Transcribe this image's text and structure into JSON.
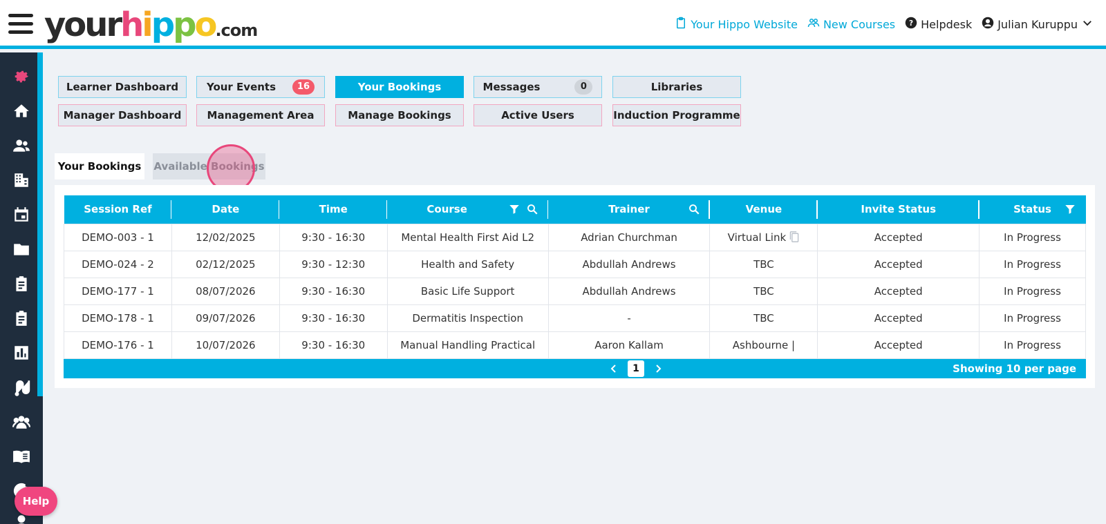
{
  "header": {
    "logo": {
      "your": "your",
      "h": "h",
      "i": "i",
      "p1": "p",
      "p2": "p",
      "o": "o",
      "dotcom": ".com"
    },
    "links": {
      "website": "Your Hippo Website",
      "new_courses": "New Courses",
      "helpdesk": "Helpdesk",
      "user": "Julian Kuruppu"
    }
  },
  "sidebar": {
    "icons": [
      "gear-icon",
      "home-icon",
      "users-icon",
      "building-icon",
      "calendar-icon",
      "folder-icon",
      "clipboard-icon",
      "clipboard-list-icon",
      "bar-chart-icon",
      "route-icon",
      "group-icon",
      "book-icon",
      "progress-icon",
      "user-icon"
    ]
  },
  "nav": {
    "learner_dashboard": "Learner Dashboard",
    "your_events": "Your Events",
    "your_events_badge": "16",
    "your_bookings": "Your Bookings",
    "messages": "Messages",
    "messages_badge": "0",
    "libraries": "Libraries",
    "manager_dashboard": "Manager Dashboard",
    "management_area": "Management Area",
    "manage_bookings": "Manage Bookings",
    "active_users": "Active Users",
    "induction_programme": "Induction Programme"
  },
  "tabs": {
    "your_bookings": "Your Bookings",
    "available_bookings": "Available Bookings"
  },
  "table": {
    "headers": {
      "session_ref": "Session Ref",
      "date": "Date",
      "time": "Time",
      "course": "Course",
      "trainer": "Trainer",
      "venue": "Venue",
      "invite_status": "Invite Status",
      "status": "Status"
    },
    "rows": [
      {
        "session_ref": "DEMO-003 - 1",
        "date": "12/02/2025",
        "time": "9:30 - 16:30",
        "course": "Mental Health First Aid L2",
        "trainer": "Adrian Churchman",
        "venue": "Virtual Link",
        "invite_status": "Accepted",
        "status": "In Progress"
      },
      {
        "session_ref": "DEMO-024 - 2",
        "date": "02/12/2025",
        "time": "9:30 - 12:30",
        "course": "Health and Safety",
        "trainer": "Abdullah Andrews",
        "venue": "TBC",
        "invite_status": "Accepted",
        "status": "In Progress"
      },
      {
        "session_ref": "DEMO-177 - 1",
        "date": "08/07/2026",
        "time": "9:30 - 16:30",
        "course": "Basic Life Support",
        "trainer": "Abdullah Andrews",
        "venue": "TBC",
        "invite_status": "Accepted",
        "status": "In Progress"
      },
      {
        "session_ref": "DEMO-178 - 1",
        "date": "09/07/2026",
        "time": "9:30 - 16:30",
        "course": "Dermatitis Inspection",
        "trainer": "-",
        "venue": "TBC",
        "invite_status": "Accepted",
        "status": "In Progress"
      },
      {
        "session_ref": "DEMO-176 - 1",
        "date": "10/07/2026",
        "time": "9:30 - 16:30",
        "course": "Manual Handling Practical",
        "trainer": "Aaron Kallam",
        "venue": "Ashbourne |",
        "invite_status": "Accepted",
        "status": "In Progress"
      }
    ],
    "pagination": {
      "current_page": "1",
      "showing": "Showing 10 per page"
    }
  },
  "help": {
    "label": "Help"
  },
  "colors": {
    "accent": "#00b0e0",
    "brand_pink": "#e8477b",
    "sidebar": "#1f2d3d",
    "badge_red": "#f45a6a"
  }
}
